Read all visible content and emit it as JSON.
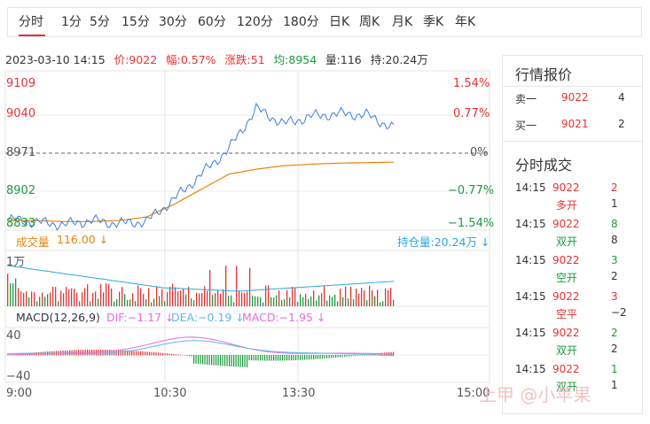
{
  "tabs": [
    "分时",
    "1分",
    "5分",
    "15分",
    "30分",
    "60分",
    "120分",
    "180分",
    "日K",
    "周K",
    "月K",
    "季K",
    "年K"
  ],
  "active_tab": "分时",
  "info": {
    "datetime": "2023-03-10 14:15",
    "price": "价:9022",
    "amplitude": "幅:0.57%",
    "change": "涨跌:51",
    "avg": "均:8954",
    "volume": "量:116",
    "open_interest": "持:20.24万"
  },
  "price_axis": {
    "left": [
      "9109",
      "9040",
      "8971",
      "8902",
      "8833"
    ],
    "right": [
      "1.54%",
      "0.77%",
      "0%",
      "−0.77%",
      "−1.54%"
    ]
  },
  "volume_header": {
    "label": "成交量",
    "value": "116.00 ↓",
    "oi_label": "持仓量:20.24万 ↓",
    "scale": "1万"
  },
  "macd_header": {
    "name": "MACD(12,26,9)",
    "dif": "DIF:−1.17 ↓",
    "dea": "DEA:−0.19 ↓",
    "macd": "MACD:−1.95 ↓"
  },
  "macd_axis": [
    "40",
    "−40"
  ],
  "time_axis": [
    "9:00",
    "10:30",
    "13:30",
    "15:00"
  ],
  "chart_data": {
    "type": "line",
    "x": [
      "9:00",
      "9:15",
      "9:30",
      "9:45",
      "10:00",
      "10:15",
      "10:30",
      "10:45",
      "11:00",
      "11:15",
      "11:30",
      "13:30",
      "13:45",
      "14:00",
      "14:15"
    ],
    "series": [
      {
        "values": [
          8840,
          8835,
          8830,
          8838,
          8832,
          8836,
          8880,
          8930,
          8980,
          9060,
          9030,
          9045,
          9050,
          9048,
          9022
        ]
      },
      {
        "values": [
          8838,
          8838,
          8836,
          8836,
          8838,
          8845,
          8870,
          8900,
          8930,
          8940,
          8947,
          8950,
          8952,
          8953,
          8954
        ]
      }
    ],
    "ylim": [
      8833,
      9109
    ]
  },
  "side": {
    "quote_title": "行情报价",
    "sell_label": "卖一",
    "sell_price": "9022",
    "sell_qty": "4",
    "buy_label": "买一",
    "buy_price": "9021",
    "buy_qty": "2",
    "trades_title": "分时成交",
    "trades": [
      {
        "time": "14:15",
        "price": "9022",
        "qty": "2",
        "type": "多开",
        "oi": "1"
      },
      {
        "time": "14:15",
        "price": "9022",
        "qty": "8",
        "type": "双开",
        "oi": "8"
      },
      {
        "time": "14:15",
        "price": "9022",
        "qty": "3",
        "type": "空开",
        "oi": "2"
      },
      {
        "time": "14:15",
        "price": "9022",
        "qty": "3",
        "type": "空平",
        "oi": "−2"
      },
      {
        "time": "14:15",
        "price": "9022",
        "qty": "2",
        "type": "双开",
        "oi": "2"
      },
      {
        "time": "14:15",
        "price": "9022",
        "qty": "1",
        "type": "双开",
        "oi": "1"
      }
    ]
  },
  "watermark": "上甲 @小苹果",
  "colors": {
    "up": "#e63232",
    "down": "#1a9b3c",
    "price_line": "#3b7fe0",
    "avg_line": "#e8830c",
    "dif": "#e070e0",
    "dea": "#60b8e8"
  }
}
